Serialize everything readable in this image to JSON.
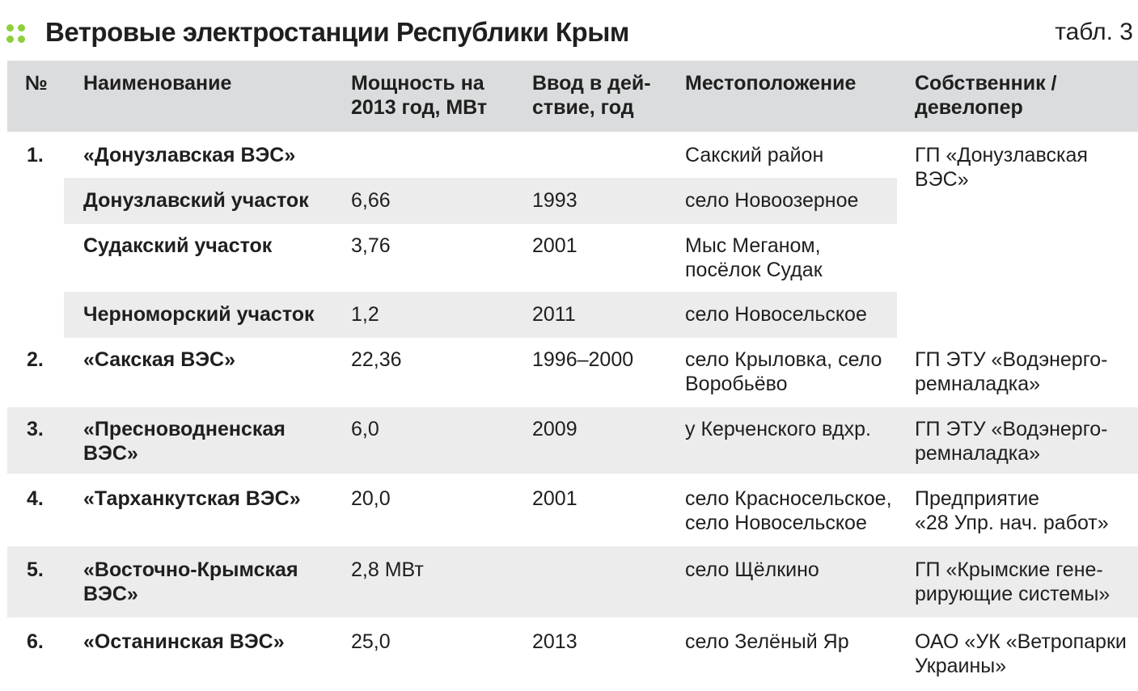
{
  "title": "Ветровые электростанции Республики Крым",
  "table_label": "табл. 3",
  "columns": {
    "num": "№",
    "name": "Наименование",
    "power": [
      "Мощность на",
      "2013 год, МВт"
    ],
    "year": [
      "Ввод в дей-",
      "ствие, год"
    ],
    "location": "Местоположение",
    "owner": [
      "Собственник /",
      "девелопер"
    ]
  },
  "rows": [
    {
      "num": "1.",
      "name": [
        "«Донузлавская ВЭС»"
      ],
      "power": "",
      "year": "",
      "location": [
        "Сакский район"
      ],
      "owner": [
        "ГП «Донузлавская",
        "ВЭС»"
      ]
    },
    {
      "num": "",
      "name": [
        "Донузлавский участок"
      ],
      "power": "6,66",
      "year": "1993",
      "location": [
        "село Новоозерное"
      ],
      "owner": []
    },
    {
      "num": "",
      "name": [
        "Судакский участок"
      ],
      "power": "3,76",
      "year": "2001",
      "location": [
        "Мыс Меганом,",
        "посёлок Судак"
      ],
      "owner": []
    },
    {
      "num": "",
      "name": [
        "Черноморский участок"
      ],
      "power": "1,2",
      "year": "2011",
      "location": [
        "село Новосельское"
      ],
      "owner": []
    },
    {
      "num": "2.",
      "name": [
        "«Сакская ВЭС»"
      ],
      "power": "22,36",
      "year": "1996–2000",
      "location": [
        "село Крыловка, село",
        "Воробьёво"
      ],
      "owner": [
        "ГП ЭТУ «Водэнерго-",
        "ремналадка»"
      ]
    },
    {
      "num": "3.",
      "name": [
        "«Пресноводненская",
        "ВЭС»"
      ],
      "power": "6,0",
      "year": "2009",
      "location": [
        "у Керченского вдхр."
      ],
      "owner": [
        "ГП ЭТУ «Водэнерго-",
        "ремналадка»"
      ]
    },
    {
      "num": "4.",
      "name": [
        "«Тарханкутская ВЭС»"
      ],
      "power": "20,0",
      "year": "2001",
      "location": [
        "село Красносельское,",
        "село Новосельское"
      ],
      "owner": [
        "Предприятие",
        "«28 Упр. нач. работ»"
      ]
    },
    {
      "num": "5.",
      "name": [
        "«Восточно-Крымская",
        "ВЭС»"
      ],
      "power": "2,8 МВт",
      "year": "",
      "location": [
        "село Щёлкино"
      ],
      "owner": [
        "ГП «Крымские гене-",
        "рирующие системы»"
      ]
    },
    {
      "num": "6.",
      "name": [
        "«Останинская ВЭС»"
      ],
      "power": "25,0",
      "year": "2013",
      "location": [
        "село Зелёный Яр"
      ],
      "owner": [
        "ОАО «УК «Ветропарки",
        "Украины»"
      ]
    }
  ]
}
